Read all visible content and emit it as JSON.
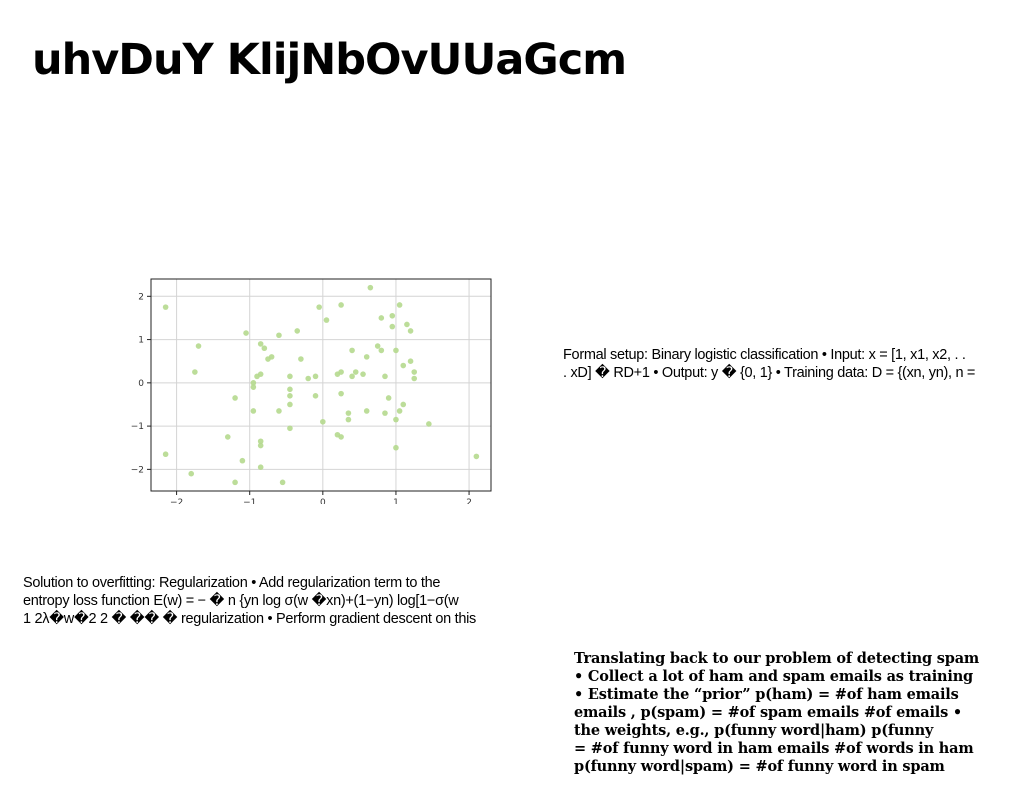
{
  "slide": {
    "title": "uhvDuY KlijNbOvUUaGcm"
  },
  "setup_block": {
    "lines": [
      "Formal setup: Binary logistic classification • Input: x = [1, x1, x2, . .",
      ". xD] � RD+1 • Output: y � {0, 1} • Training data: D = {(xn, yn), n ="
    ]
  },
  "regularization_block": {
    "lines": [
      "Solution to overfitting: Regularization • Add regularization term to the",
      "entropy loss function E(w) = − � n {yn log σ(w �xn)+(1−yn) log[1−σ(w",
      "1 2λ�w�2 2 � �� � regularization • Perform gradient descent on this"
    ]
  },
  "spam_block": {
    "lines": [
      "Translating back to our problem of detecting spam",
      "• Collect a lot of ham and spam emails as training",
      "• Estimate the “prior” p(ham) = #of ham emails",
      "emails , p(spam) = #of spam emails #of emails •",
      "the weights, e.g., p(funny word|ham) p(funny",
      "= #of funny word in ham emails #of words in ham",
      "p(funny word|spam) = #of funny word in spam"
    ]
  },
  "chart_data": {
    "type": "scatter",
    "title": "",
    "xlabel": "",
    "ylabel": "",
    "xlim": [
      -2.35,
      2.3
    ],
    "ylim": [
      -2.5,
      2.4
    ],
    "xticks": [
      -2,
      -1,
      0,
      1,
      2
    ],
    "yticks": [
      -2,
      -1,
      0,
      1,
      2
    ],
    "xtick_labels": [
      "−2",
      "−1",
      "0",
      "1",
      "2"
    ],
    "ytick_labels": [
      "−2",
      "−1",
      "0",
      "1",
      "2"
    ],
    "grid": true,
    "point_color": "#b5d98e",
    "points": [
      [
        -2.15,
        1.75
      ],
      [
        -2.15,
        -1.65
      ],
      [
        -1.8,
        -2.1
      ],
      [
        -1.75,
        0.25
      ],
      [
        -1.7,
        0.85
      ],
      [
        -1.3,
        -1.25
      ],
      [
        -1.2,
        -2.3
      ],
      [
        -1.2,
        -0.35
      ],
      [
        -1.1,
        -1.8
      ],
      [
        -1.05,
        1.15
      ],
      [
        -0.95,
        0.0
      ],
      [
        -0.95,
        -0.1
      ],
      [
        -0.95,
        -0.65
      ],
      [
        -0.9,
        0.15
      ],
      [
        -0.85,
        0.2
      ],
      [
        -0.85,
        -1.35
      ],
      [
        -0.85,
        -1.45
      ],
      [
        -0.85,
        -1.95
      ],
      [
        -0.85,
        0.9
      ],
      [
        -0.8,
        0.8
      ],
      [
        -0.75,
        0.55
      ],
      [
        -0.7,
        0.6
      ],
      [
        -0.6,
        1.1
      ],
      [
        -0.6,
        -0.65
      ],
      [
        -0.55,
        -2.3
      ],
      [
        -0.45,
        0.15
      ],
      [
        -0.45,
        -0.15
      ],
      [
        -0.45,
        -0.3
      ],
      [
        -0.45,
        -0.5
      ],
      [
        -0.45,
        -1.05
      ],
      [
        -0.35,
        1.2
      ],
      [
        -0.3,
        0.55
      ],
      [
        -0.2,
        0.1
      ],
      [
        -0.1,
        0.15
      ],
      [
        -0.1,
        -0.3
      ],
      [
        -0.05,
        1.75
      ],
      [
        0.0,
        -0.9
      ],
      [
        0.05,
        1.45
      ],
      [
        0.2,
        0.2
      ],
      [
        0.2,
        -1.2
      ],
      [
        0.25,
        -1.25
      ],
      [
        0.25,
        0.25
      ],
      [
        0.25,
        -0.25
      ],
      [
        0.25,
        1.8
      ],
      [
        0.35,
        -0.7
      ],
      [
        0.35,
        -0.85
      ],
      [
        0.4,
        0.15
      ],
      [
        0.4,
        0.75
      ],
      [
        0.45,
        0.25
      ],
      [
        0.55,
        0.2
      ],
      [
        0.6,
        0.6
      ],
      [
        0.6,
        -0.65
      ],
      [
        0.65,
        2.2
      ],
      [
        0.75,
        0.85
      ],
      [
        0.8,
        1.5
      ],
      [
        0.8,
        0.75
      ],
      [
        0.85,
        0.15
      ],
      [
        0.85,
        -0.7
      ],
      [
        0.9,
        -0.35
      ],
      [
        0.95,
        1.55
      ],
      [
        0.95,
        1.3
      ],
      [
        1.0,
        0.75
      ],
      [
        1.0,
        -0.85
      ],
      [
        1.0,
        -1.5
      ],
      [
        1.05,
        1.8
      ],
      [
        1.05,
        -0.65
      ],
      [
        1.1,
        0.4
      ],
      [
        1.1,
        -0.5
      ],
      [
        1.15,
        1.35
      ],
      [
        1.2,
        1.2
      ],
      [
        1.2,
        0.5
      ],
      [
        1.25,
        0.25
      ],
      [
        1.25,
        0.1
      ],
      [
        1.45,
        -0.95
      ],
      [
        2.1,
        -1.7
      ]
    ]
  }
}
